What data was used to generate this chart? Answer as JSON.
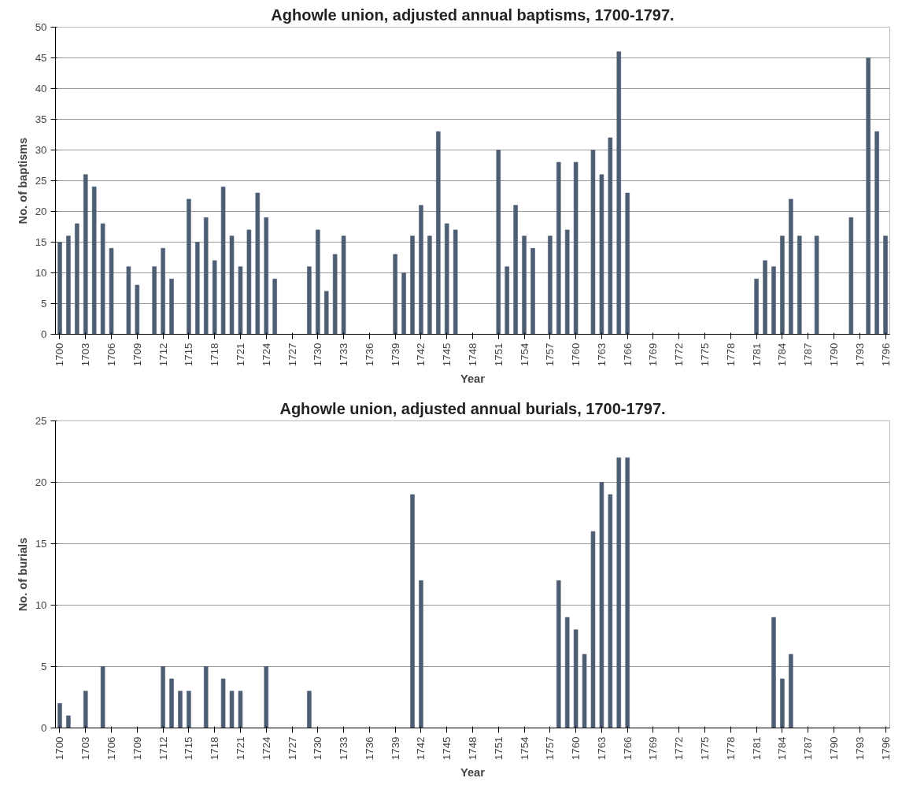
{
  "chart_data": [
    {
      "type": "bar",
      "title": "Aghowle union, adjusted annual baptisms, 1700-1797.",
      "xlabel": "Year",
      "ylabel": "No. of baptisms",
      "color": "#4d5e74",
      "grid": "y",
      "ylim": [
        0,
        50
      ],
      "yticks": [
        0,
        5,
        10,
        15,
        20,
        25,
        30,
        35,
        40,
        45,
        50
      ],
      "categories": [
        "1700",
        null,
        null,
        "1703",
        null,
        null,
        "1706",
        null,
        null,
        "1709",
        null,
        null,
        "1712",
        null,
        null,
        "1715",
        null,
        null,
        "1718",
        null,
        null,
        "1721",
        null,
        null,
        "1724",
        null,
        null,
        "1727",
        null,
        null,
        "1730",
        null,
        null,
        "1733",
        null,
        null,
        "1736",
        null,
        null,
        "1739",
        null,
        null,
        "1742",
        null,
        null,
        "1745",
        null,
        null,
        "1748",
        null,
        null,
        "1751",
        null,
        null,
        "1754",
        null,
        null,
        "1757",
        null,
        null,
        "1760",
        null,
        null,
        "1763",
        null,
        null,
        "1766",
        null,
        null,
        "1769",
        null,
        null,
        "1772",
        null,
        null,
        "1775",
        null,
        null,
        "1778",
        null,
        null,
        "1781",
        null,
        null,
        "1784",
        null,
        null,
        "1787",
        null,
        null,
        "1790",
        null,
        null,
        "1793",
        null,
        null,
        "1796"
      ],
      "values": [
        15,
        16,
        18,
        26,
        24,
        18,
        14,
        0,
        11,
        8,
        0,
        11,
        14,
        9,
        0,
        22,
        15,
        19,
        12,
        24,
        16,
        11,
        17,
        23,
        19,
        9,
        0,
        0,
        0,
        11,
        17,
        7,
        13,
        16,
        0,
        0,
        0,
        0,
        0,
        13,
        10,
        16,
        21,
        16,
        33,
        18,
        17,
        0,
        0,
        0,
        0,
        30,
        11,
        21,
        16,
        14,
        0,
        16,
        28,
        17,
        28,
        0,
        30,
        26,
        32,
        46,
        23,
        0,
        0,
        0,
        0,
        0,
        0,
        0,
        0,
        0,
        0,
        0,
        0,
        0,
        0,
        9,
        12,
        11,
        16,
        22,
        16,
        0,
        16,
        0,
        0,
        0,
        19,
        0,
        45,
        33,
        16
      ]
    },
    {
      "type": "bar",
      "title": "Aghowle union, adjusted annual burials, 1700-1797.",
      "xlabel": "Year",
      "ylabel": "No. of burials",
      "color": "#4d5e74",
      "grid": "y",
      "ylim": [
        0,
        25
      ],
      "yticks": [
        0,
        5,
        10,
        15,
        20,
        25
      ],
      "categories": [
        "1700",
        null,
        null,
        "1703",
        null,
        null,
        "1706",
        null,
        null,
        "1709",
        null,
        null,
        "1712",
        null,
        null,
        "1715",
        null,
        null,
        "1718",
        null,
        null,
        "1721",
        null,
        null,
        "1724",
        null,
        null,
        "1727",
        null,
        null,
        "1730",
        null,
        null,
        "1733",
        null,
        null,
        "1736",
        null,
        null,
        "1739",
        null,
        null,
        "1742",
        null,
        null,
        "1745",
        null,
        null,
        "1748",
        null,
        null,
        "1751",
        null,
        null,
        "1754",
        null,
        null,
        "1757",
        null,
        null,
        "1760",
        null,
        null,
        "1763",
        null,
        null,
        "1766",
        null,
        null,
        "1769",
        null,
        null,
        "1772",
        null,
        null,
        "1775",
        null,
        null,
        "1778",
        null,
        null,
        "1781",
        null,
        null,
        "1784",
        null,
        null,
        "1787",
        null,
        null,
        "1790",
        null,
        null,
        "1793",
        null,
        null,
        "1796"
      ],
      "values": [
        2,
        1,
        0,
        3,
        0,
        5,
        0,
        0,
        0,
        0,
        0,
        0,
        5,
        4,
        3,
        3,
        0,
        5,
        0,
        4,
        3,
        3,
        0,
        0,
        5,
        0,
        0,
        0,
        0,
        3,
        0,
        0,
        0,
        0,
        0,
        0,
        0,
        0,
        0,
        0,
        0,
        19,
        12,
        0,
        0,
        0,
        0,
        0,
        0,
        0,
        0,
        0,
        0,
        0,
        0,
        0,
        0,
        0,
        12,
        9,
        8,
        6,
        16,
        20,
        19,
        22,
        22,
        0,
        0,
        0,
        0,
        0,
        0,
        0,
        0,
        0,
        0,
        0,
        0,
        0,
        0,
        0,
        0,
        9,
        4,
        6,
        0,
        0,
        0,
        0,
        0,
        0,
        0,
        0,
        0,
        0,
        0
      ]
    }
  ]
}
